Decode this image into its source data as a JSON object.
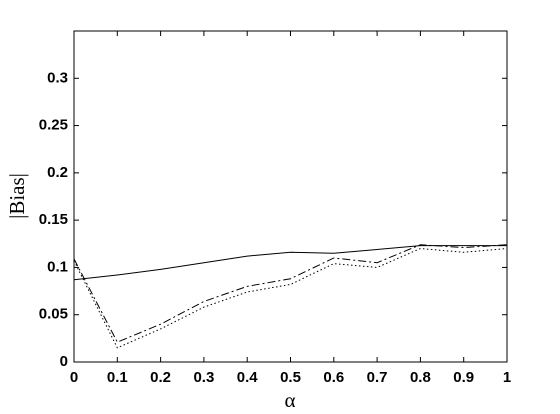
{
  "chart_data": {
    "type": "line",
    "xlabel": "α",
    "ylabel": "|Bias|",
    "x": [
      0,
      0.1,
      0.2,
      0.3,
      0.4,
      0.5,
      0.6,
      0.7,
      0.8,
      0.9,
      1
    ],
    "series": [
      {
        "color": "#000000",
        "dash": "solid",
        "values": [
          0.087,
          0.092,
          0.098,
          0.105,
          0.112,
          0.116,
          0.115,
          0.119,
          0.123,
          0.123,
          0.123
        ]
      },
      {
        "color": "#000000",
        "dash": "dashdot",
        "values": [
          0.109,
          0.021,
          0.04,
          0.064,
          0.08,
          0.088,
          0.11,
          0.105,
          0.124,
          0.121,
          0.124
        ]
      },
      {
        "color": "#000000",
        "dash": "dotted",
        "values": [
          0.107,
          0.015,
          0.035,
          0.058,
          0.074,
          0.082,
          0.104,
          0.1,
          0.12,
          0.116,
          0.12
        ]
      }
    ],
    "xlim": [
      0,
      1
    ],
    "xticks": [
      0,
      0.1,
      0.2,
      0.3,
      0.4,
      0.5,
      0.6,
      0.7,
      0.8,
      0.9,
      1
    ],
    "ylim": [
      0,
      0.35
    ],
    "yticks": [
      0,
      0.05,
      0.1,
      0.15,
      0.2,
      0.25,
      0.3
    ],
    "grid": false
  }
}
